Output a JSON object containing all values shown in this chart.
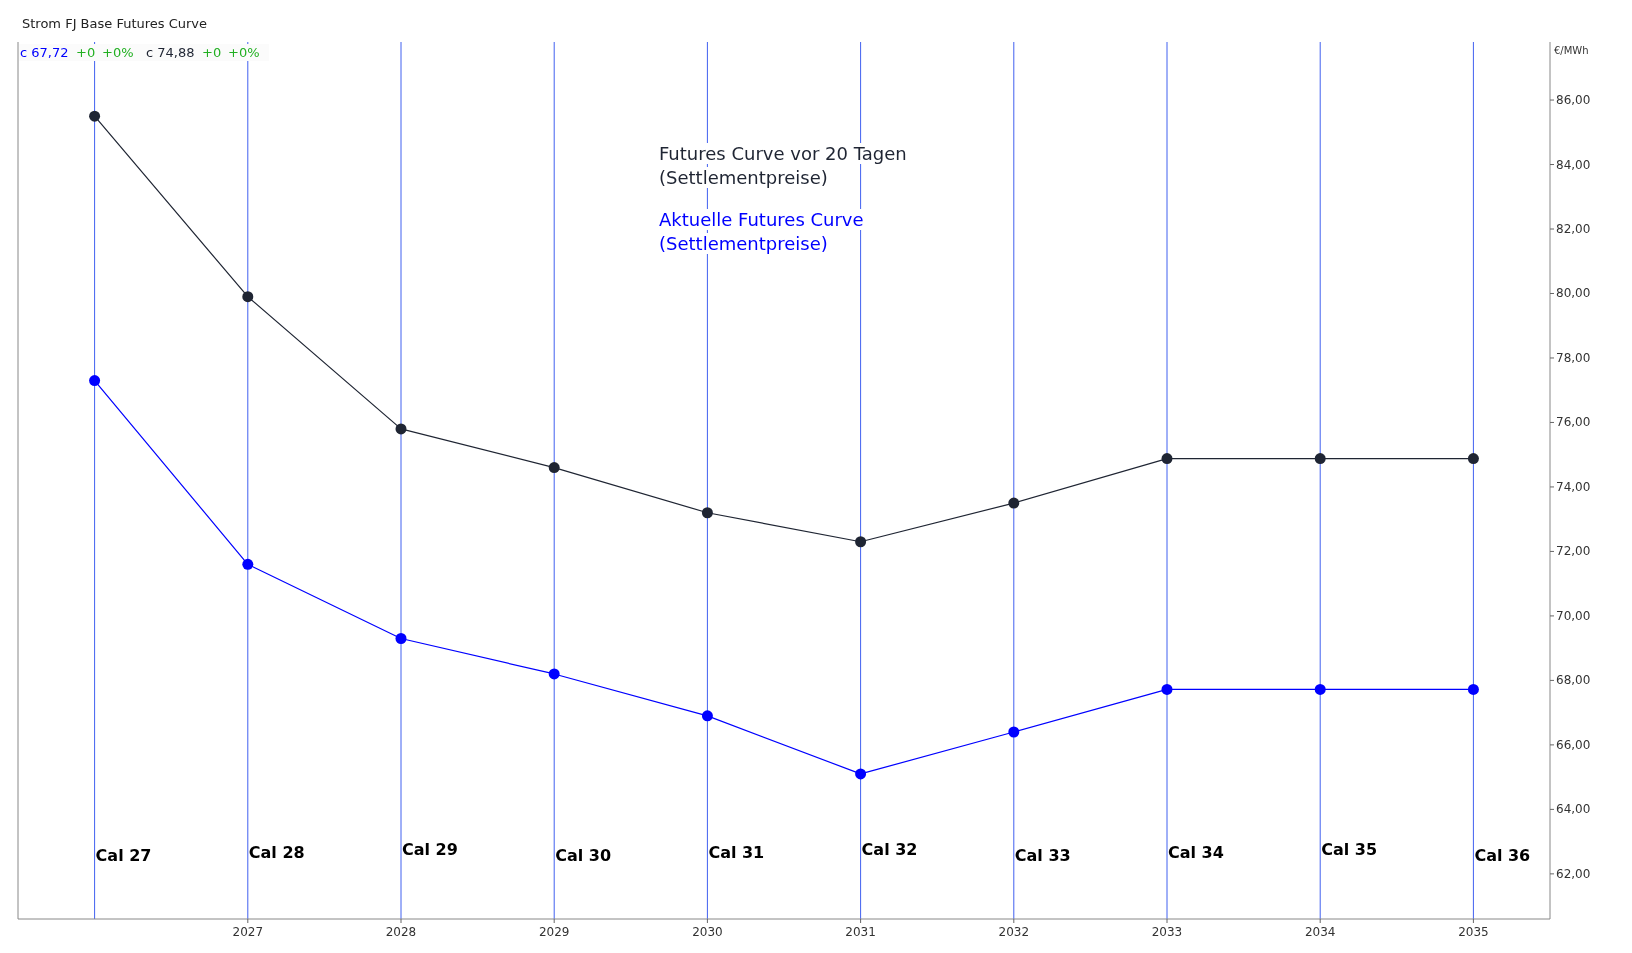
{
  "chart_data": {
    "type": "line",
    "title": "Strom FJ Base Futures Curve",
    "ylabel": "€/MWh",
    "x": [
      2026,
      2027,
      2028,
      2029,
      2030,
      2031,
      2032,
      2033,
      2034,
      2035
    ],
    "series": [
      {
        "name": "Futures Curve vor 20 Tagen (Settlementpreise)",
        "color": "#1f2533",
        "values": [
          85.5,
          79.9,
          75.8,
          74.6,
          73.2,
          72.3,
          73.5,
          74.88,
          74.88,
          74.88
        ]
      },
      {
        "name": "Aktuelle Futures Curve (Settlementpreise)",
        "color": "#0000ff",
        "values": [
          77.3,
          71.6,
          69.3,
          68.2,
          66.9,
          65.1,
          66.4,
          67.72,
          67.72,
          67.72
        ]
      }
    ],
    "xlim": [
      2025.5,
      2035.5
    ],
    "xticks": [
      {
        "value": 2026,
        "label": null
      },
      2027,
      2028,
      2029,
      2030,
      2031,
      2032,
      2033,
      2034,
      2035
    ],
    "ylim": [
      60.6,
      87.8
    ],
    "yticks": [
      {
        "value": 62,
        "label": "62,00"
      },
      {
        "value": 64,
        "label": "64,00"
      },
      {
        "value": 66,
        "label": "66,00"
      },
      {
        "value": 68,
        "label": "68,00"
      },
      {
        "value": 70,
        "label": "70,00"
      },
      {
        "value": 72,
        "label": "72,00"
      },
      {
        "value": 74,
        "label": "74,00"
      },
      {
        "value": 76,
        "label": "76,00"
      },
      {
        "value": 78,
        "label": "78,00"
      },
      {
        "value": 80,
        "label": "80,00"
      },
      {
        "value": 82,
        "label": "82,00"
      },
      {
        "value": 84,
        "label": "84,00"
      },
      {
        "value": 86,
        "label": "86,00"
      }
    ],
    "grid": "x",
    "legend": "top",
    "marker": "circle",
    "line_style": "solid",
    "annotations": [
      "c 67,72",
      "+0",
      "+0%",
      "c 74,88",
      "+0",
      "+0%",
      "Cal 27",
      "Cal 28",
      "Cal 29",
      "Cal 30",
      "Cal 31",
      "Cal 32",
      "Cal 33",
      "Cal 34",
      "Cal 35",
      "Cal 36"
    ]
  }
}
